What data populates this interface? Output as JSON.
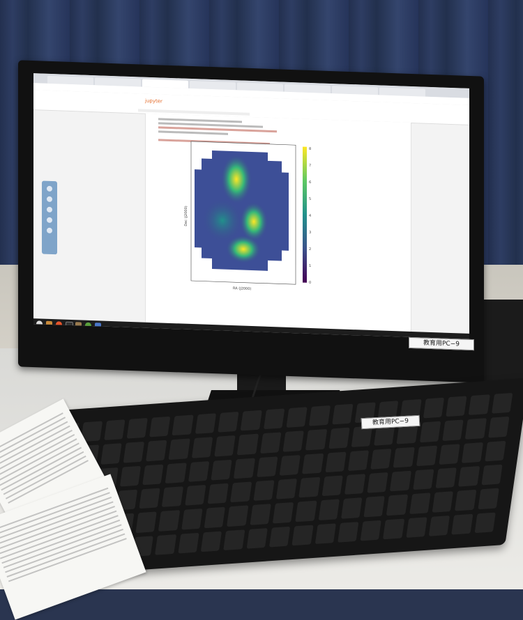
{
  "scene": {
    "description_colors": {
      "curtain": "#2e3d63",
      "desk": "#e6e5e1",
      "monitor_bezel": "#111111",
      "keyboard": "#161616"
    }
  },
  "browser": {
    "tabs": [
      "",
      "",
      "",
      "",
      "",
      "",
      "",
      "",
      "",
      ""
    ],
    "active_tab_index": 2
  },
  "jupyter": {
    "logo_text": "jupyter"
  },
  "plot": {
    "colorbar_ticks": [
      "8",
      "7",
      "6",
      "5",
      "4",
      "3",
      "2",
      "1",
      "0"
    ],
    "ylabel": "Dec (J2000)",
    "xlabel": "RA (J2000)",
    "colormap": "viridis"
  },
  "labels": {
    "monitor_sticker": "教育用PC−9",
    "keyboard_sticker": "教育用PC−9"
  },
  "icons": {
    "start": "circle-logo-icon",
    "files": "folder-icon",
    "browser": "firefox-icon",
    "terminal": "terminal-icon"
  }
}
